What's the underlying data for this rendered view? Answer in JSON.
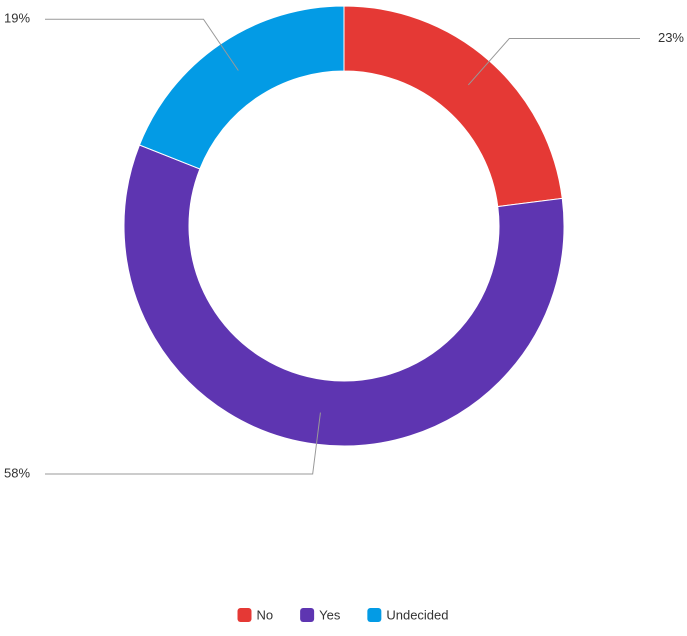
{
  "chart_data": {
    "type": "pie",
    "categories": [
      "No",
      "Yes",
      "Undecided"
    ],
    "values": [
      23,
      58,
      19
    ],
    "value_labels": [
      "23%",
      "58%",
      "19%"
    ],
    "colors": [
      "#e53935",
      "#5e35b1",
      "#039be5"
    ]
  }
}
